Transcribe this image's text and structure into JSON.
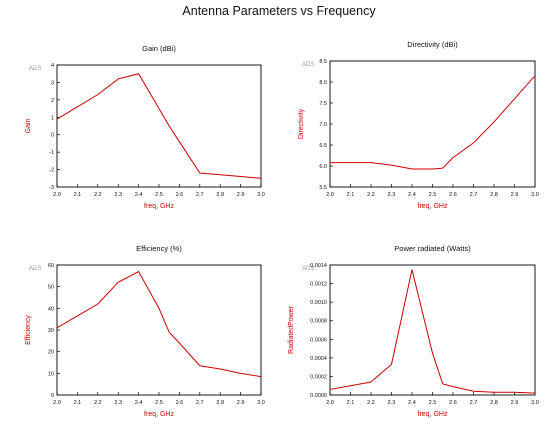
{
  "title": "Antenna Parameters vs Frequency",
  "brand": "ADS",
  "colors": {
    "line": "#cc0000",
    "axis": "#000000",
    "label": "#cc0000"
  },
  "chart_data": [
    {
      "type": "line",
      "title": "Gain (dBi)",
      "xlabel": "freq, GHz",
      "ylabel": "Gain",
      "xlim": [
        2.0,
        3.0
      ],
      "ylim": [
        -3,
        4
      ],
      "xticks": [
        2.0,
        2.1,
        2.2,
        2.3,
        2.4,
        2.5,
        2.6,
        2.7,
        2.8,
        2.9,
        3.0
      ],
      "xtick_labels": [
        "2.0",
        "2.1",
        "2.2",
        "2.3",
        "2.4",
        "2.5",
        "2.6",
        "2.7",
        "2.8",
        "2.9",
        "3.0"
      ],
      "yticks": [
        -3,
        -2,
        -1,
        0,
        1,
        2,
        3,
        4
      ],
      "ytick_labels": [
        "-3",
        "-2",
        "-1",
        "0",
        "1",
        "2",
        "3",
        "4"
      ],
      "series": [
        {
          "x": [
            2.0,
            2.1,
            2.2,
            2.3,
            2.4,
            2.5,
            2.55,
            2.6,
            2.7,
            2.8,
            2.9,
            3.0
          ],
          "y": [
            0.9,
            1.6,
            2.3,
            3.2,
            3.5,
            1.5,
            0.5,
            -0.4,
            -2.2,
            -2.3,
            -2.4,
            -2.5
          ]
        }
      ]
    },
    {
      "type": "line",
      "title": "Directivity (dBi)",
      "xlabel": "freq, GHz",
      "ylabel": "Directivity",
      "xlim": [
        2.0,
        3.0
      ],
      "ylim": [
        5.5,
        8.5
      ],
      "xticks": [
        2.0,
        2.1,
        2.2,
        2.3,
        2.4,
        2.5,
        2.6,
        2.7,
        2.8,
        2.9,
        3.0
      ],
      "xtick_labels": [
        "2.0",
        "2.1",
        "2.2",
        "2.3",
        "2.4",
        "2.5",
        "2.6",
        "2.7",
        "2.8",
        "2.9",
        "3.0"
      ],
      "yticks": [
        5.5,
        6.0,
        6.5,
        7.0,
        7.5,
        8.0,
        8.5
      ],
      "ytick_labels": [
        "5.5",
        "6.0",
        "6.5",
        "7.0",
        "7.5",
        "8.0",
        "8.5"
      ],
      "series": [
        {
          "x": [
            2.0,
            2.1,
            2.2,
            2.3,
            2.4,
            2.5,
            2.55,
            2.6,
            2.7,
            2.8,
            2.9,
            3.0
          ],
          "y": [
            6.08,
            6.08,
            6.08,
            6.02,
            5.93,
            5.93,
            5.95,
            6.2,
            6.55,
            7.05,
            7.6,
            8.15
          ]
        }
      ]
    },
    {
      "type": "line",
      "title": "Efficiency (%)",
      "xlabel": "freq, GHz",
      "ylabel": "Efficiency",
      "xlim": [
        2.0,
        3.0
      ],
      "ylim": [
        0,
        60
      ],
      "xticks": [
        2.0,
        2.1,
        2.2,
        2.3,
        2.4,
        2.5,
        2.6,
        2.7,
        2.8,
        2.9,
        3.0
      ],
      "xtick_labels": [
        "2.0",
        "2.1",
        "2.2",
        "2.3",
        "2.4",
        "2.5",
        "2.6",
        "2.7",
        "2.8",
        "2.9",
        "3.0"
      ],
      "yticks": [
        0,
        10,
        20,
        30,
        40,
        50,
        60
      ],
      "ytick_labels": [
        "0",
        "10",
        "20",
        "30",
        "40",
        "50",
        "60"
      ],
      "series": [
        {
          "x": [
            2.0,
            2.1,
            2.2,
            2.3,
            2.4,
            2.5,
            2.55,
            2.6,
            2.7,
            2.8,
            2.9,
            3.0
          ],
          "y": [
            31,
            36.5,
            42,
            52,
            57,
            40,
            29,
            24,
            13.5,
            12,
            10,
            8.5
          ]
        }
      ]
    },
    {
      "type": "line",
      "title": "Power radiated (Watts)",
      "xlabel": "freq, GHz",
      "ylabel": "RadiatedPower",
      "xlim": [
        2.0,
        3.0
      ],
      "ylim": [
        0,
        0.0014
      ],
      "xticks": [
        2.0,
        2.1,
        2.2,
        2.3,
        2.4,
        2.5,
        2.6,
        2.7,
        2.8,
        2.9,
        3.0
      ],
      "xtick_labels": [
        "2.0",
        "2.1",
        "2.2",
        "2.3",
        "2.4",
        "2.5",
        "2.6",
        "2.7",
        "2.8",
        "2.9",
        "3.0"
      ],
      "yticks": [
        0,
        0.0002,
        0.0004,
        0.0006,
        0.0008,
        0.001,
        0.0012,
        0.0014
      ],
      "ytick_labels": [
        "0.0000",
        "0.0002",
        "0.0004",
        "0.0006",
        "0.0008",
        "0.0010",
        "0.0012",
        "0.0014"
      ],
      "series": [
        {
          "x": [
            2.0,
            2.1,
            2.2,
            2.3,
            2.4,
            2.5,
            2.55,
            2.6,
            2.7,
            2.8,
            2.9,
            3.0
          ],
          "y": [
            6e-05,
            0.0001,
            0.00014,
            0.00033,
            0.00135,
            0.00045,
            0.00012,
            9e-05,
            4e-05,
            3e-05,
            3e-05,
            2e-05
          ]
        }
      ]
    }
  ]
}
